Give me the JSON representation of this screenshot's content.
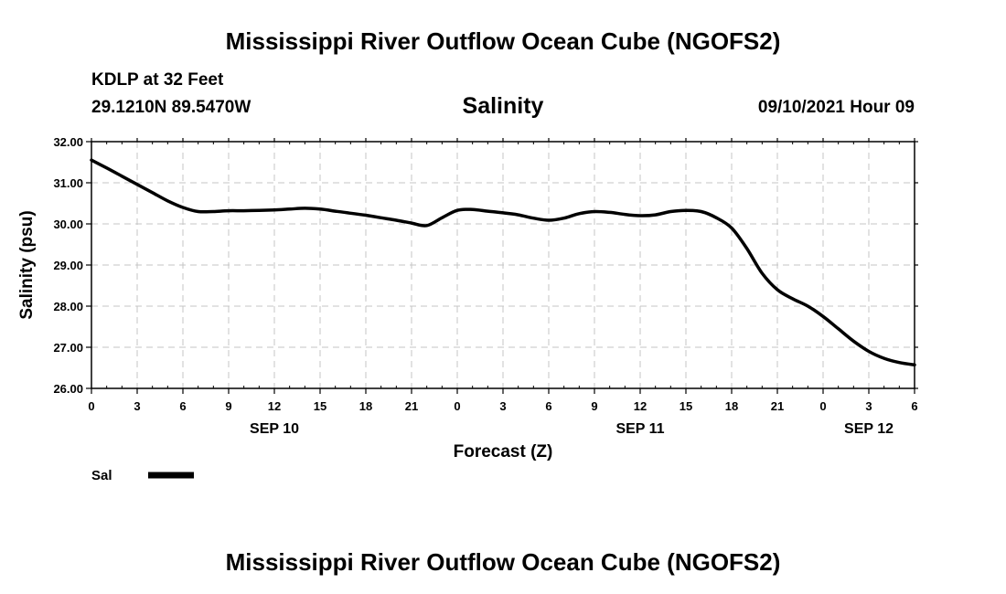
{
  "header": {
    "title_top": "Mississippi River Outflow Ocean Cube (NGOFS2)",
    "title_bottom": "Mississippi River Outflow Ocean Cube (NGOFS2)",
    "station_line": "KDLP at 32 Feet",
    "coords_line": "29.1210N  89.5470W",
    "run_time": "09/10/2021 Hour 09"
  },
  "chart_data": {
    "type": "line",
    "title": "Salinity",
    "xlabel": "Forecast (Z)",
    "ylabel": "Salinity (psu)",
    "xlim": [
      0,
      54
    ],
    "ylim": [
      26.0,
      32.0
    ],
    "grid": true,
    "y_ticks": [
      "26.00",
      "27.00",
      "28.00",
      "29.00",
      "30.00",
      "31.00",
      "32.00"
    ],
    "x_tick_values": [
      0,
      3,
      6,
      9,
      12,
      15,
      18,
      21,
      24,
      27,
      30,
      33,
      36,
      39,
      42,
      45,
      48,
      51,
      54
    ],
    "x_tick_labels": [
      "0",
      "3",
      "6",
      "9",
      "12",
      "15",
      "18",
      "21",
      "0",
      "3",
      "6",
      "9",
      "12",
      "15",
      "18",
      "21",
      "0",
      "3",
      "6"
    ],
    "day_labels": [
      {
        "label": "SEP 10",
        "x": 12
      },
      {
        "label": "SEP 11",
        "x": 36
      },
      {
        "label": "SEP 12",
        "x": 51
      }
    ],
    "legend": [
      {
        "name": "Sal"
      }
    ],
    "series": [
      {
        "name": "Sal",
        "x": [
          0,
          1,
          2,
          3,
          4,
          5,
          6,
          7,
          8,
          9,
          10,
          11,
          12,
          13,
          14,
          15,
          16,
          17,
          18,
          19,
          20,
          21,
          22,
          23,
          24,
          25,
          26,
          27,
          28,
          29,
          30,
          31,
          32,
          33,
          34,
          35,
          36,
          37,
          38,
          39,
          40,
          41,
          42,
          43,
          44,
          45,
          46,
          47,
          48,
          49,
          50,
          51,
          52,
          53,
          54
        ],
        "values": [
          31.55,
          31.36,
          31.16,
          30.96,
          30.76,
          30.56,
          30.4,
          30.3,
          30.3,
          30.32,
          30.32,
          30.33,
          30.34,
          30.36,
          30.38,
          30.36,
          30.31,
          30.26,
          30.21,
          30.15,
          30.09,
          30.02,
          29.96,
          30.15,
          30.33,
          30.35,
          30.31,
          30.27,
          30.22,
          30.14,
          30.09,
          30.14,
          30.25,
          30.3,
          30.28,
          30.23,
          30.2,
          30.22,
          30.3,
          30.33,
          30.3,
          30.15,
          29.9,
          29.4,
          28.8,
          28.4,
          28.18,
          28.0,
          27.75,
          27.45,
          27.15,
          26.9,
          26.73,
          26.63,
          26.57
        ]
      }
    ]
  }
}
